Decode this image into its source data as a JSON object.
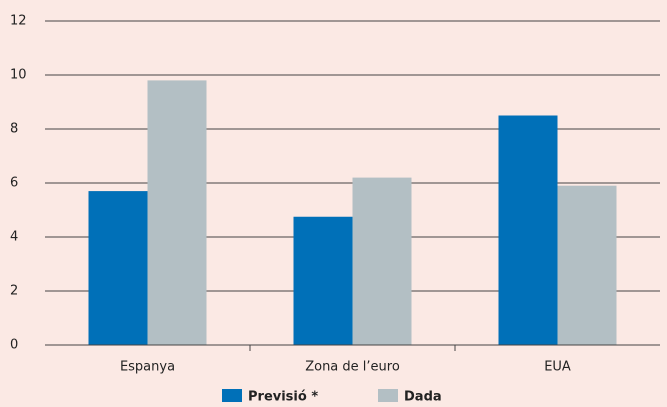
{
  "chart_data": {
    "type": "bar",
    "categories": [
      "Espanya",
      "Zona de l’euro",
      "EUA"
    ],
    "series": [
      {
        "name": "Previsió *",
        "color": "#0070b8",
        "values": [
          5.7,
          4.75,
          8.5
        ]
      },
      {
        "name": "Dada",
        "color": "#b3bfc4",
        "values": [
          9.8,
          6.2,
          5.9
        ]
      }
    ],
    "ylim": [
      0,
      12
    ],
    "yticks": [
      0,
      2,
      4,
      6,
      8,
      10,
      12
    ],
    "grid": true,
    "legend": "bottom"
  }
}
